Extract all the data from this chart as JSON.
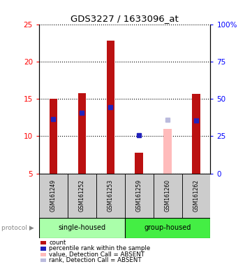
{
  "title": "GDS3227 / 1633096_at",
  "samples": [
    "GSM161249",
    "GSM161252",
    "GSM161253",
    "GSM161259",
    "GSM161260",
    "GSM161262"
  ],
  "count_values": [
    15.0,
    15.8,
    22.8,
    7.8,
    null,
    15.7
  ],
  "rank_values": [
    12.3,
    13.1,
    13.9,
    10.1,
    null,
    12.1
  ],
  "absent_value": [
    null,
    null,
    null,
    null,
    11.0,
    null
  ],
  "absent_rank": [
    null,
    null,
    null,
    null,
    12.2,
    null
  ],
  "bar_color": "#BB1111",
  "rank_color": "#2222BB",
  "absent_bar_color": "#FFBBBB",
  "absent_rank_color": "#BBBBDD",
  "ylim_left": [
    5,
    25
  ],
  "ylim_right": [
    0,
    100
  ],
  "yticks_left": [
    5,
    10,
    15,
    20,
    25
  ],
  "ytick_labels_left": [
    "5",
    "10",
    "15",
    "20",
    "25"
  ],
  "yticks_right": [
    0,
    25,
    50,
    75,
    100
  ],
  "ytick_labels_right": [
    "0",
    "25",
    "50",
    "75",
    "100%"
  ],
  "bar_width": 0.28,
  "single_housed_color": "#AAFFAA",
  "group_housed_color": "#44EE44",
  "sample_box_color": "#CCCCCC",
  "legend_items": [
    {
      "label": "count",
      "color": "#BB1111"
    },
    {
      "label": "percentile rank within the sample",
      "color": "#2222BB"
    },
    {
      "label": "value, Detection Call = ABSENT",
      "color": "#FFBBBB"
    },
    {
      "label": "rank, Detection Call = ABSENT",
      "color": "#BBBBDD"
    }
  ]
}
